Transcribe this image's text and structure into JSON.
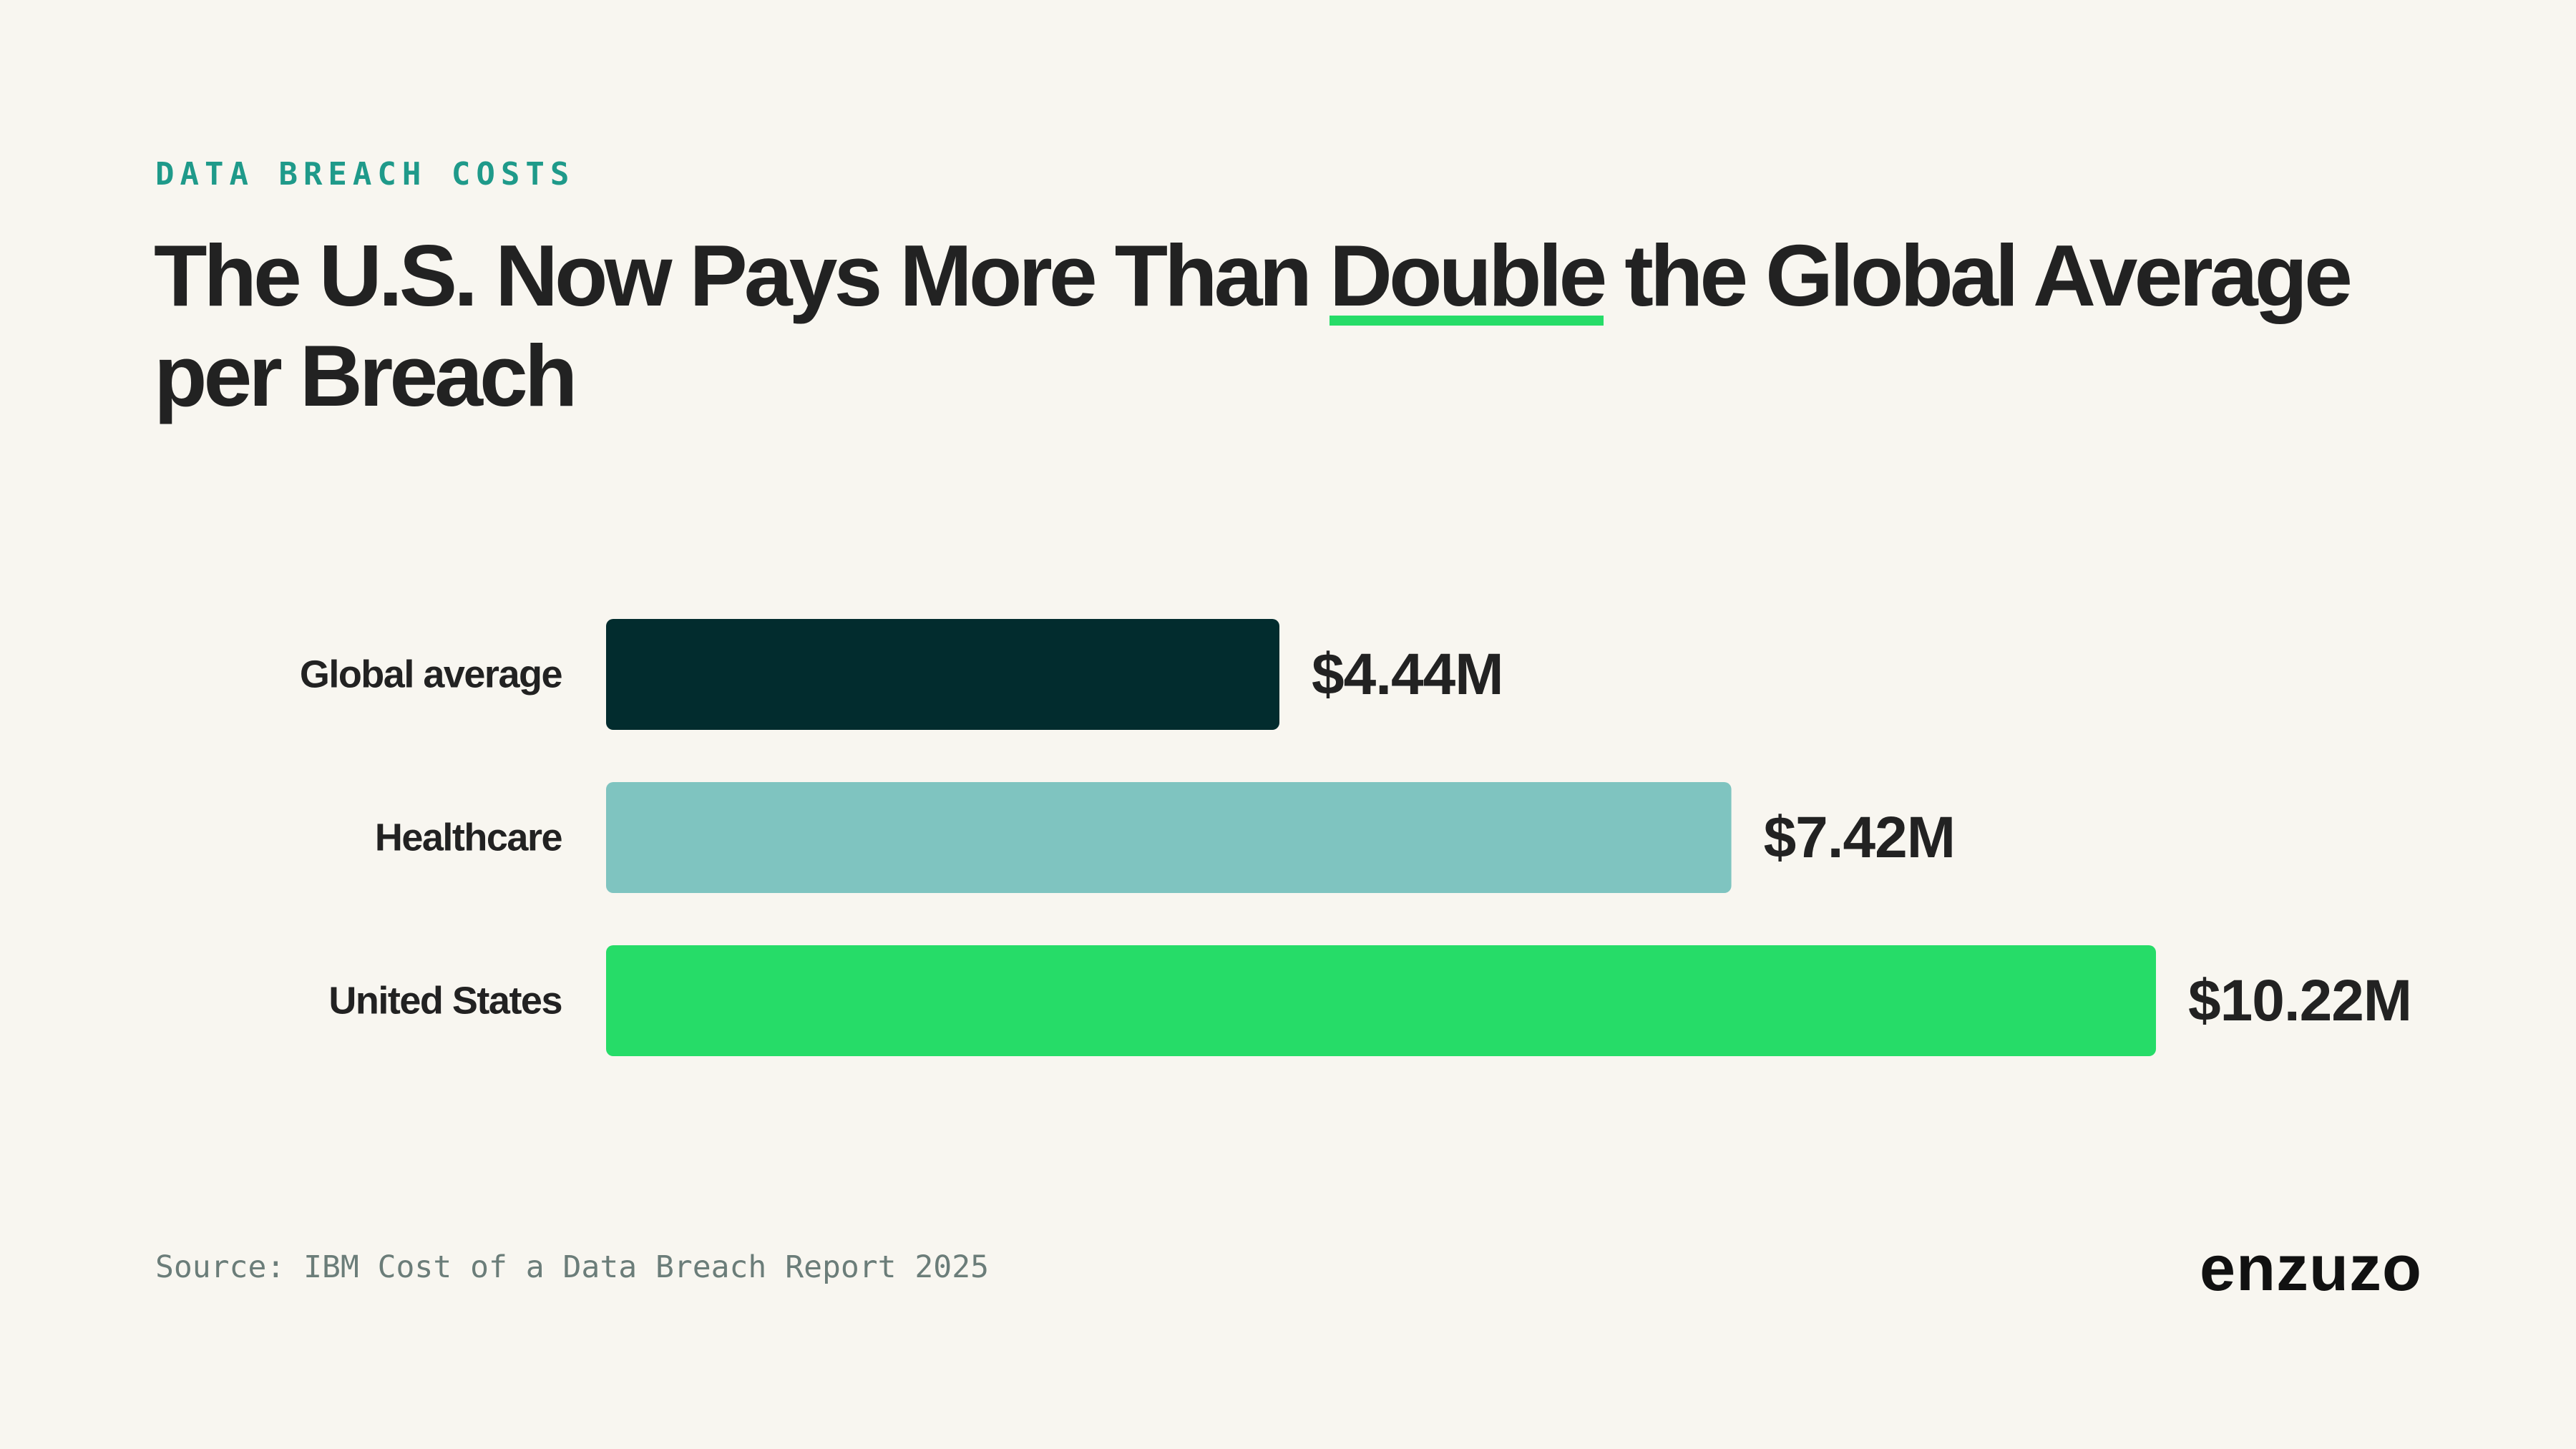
{
  "header": {
    "eyebrow": "DATA BREACH COSTS",
    "title_before": "The U.S. Now Pays More Than ",
    "title_highlight": "Double",
    "title_after": " the Global Average per Breach"
  },
  "colors": {
    "background": "#f8f6f0",
    "eyebrow": "#1f9a8a",
    "highlight_underline": "#26dc68",
    "text": "#222222"
  },
  "chart_data": {
    "type": "bar",
    "orientation": "horizontal",
    "categories": [
      "Global average",
      "Healthcare",
      "United States"
    ],
    "values": [
      4.44,
      7.42,
      10.22
    ],
    "value_labels": [
      "$4.44M",
      "$7.42M",
      "$10.22M"
    ],
    "unit": "$M",
    "bar_colors": [
      "#022c2e",
      "#7fc4c0",
      "#26dc68"
    ],
    "xlim": [
      0,
      10.22
    ],
    "grid": false,
    "legend": "none"
  },
  "footer": {
    "source": "Source: IBM Cost of a Data Breach Report 2025",
    "logo": "enzuzo"
  }
}
